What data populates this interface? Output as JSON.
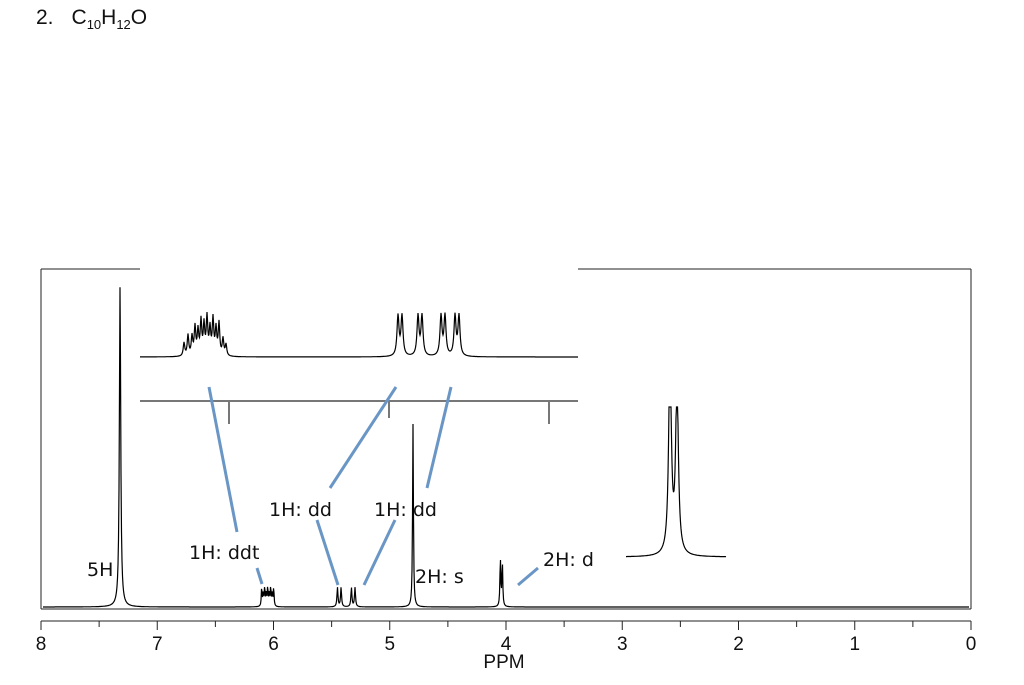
{
  "problem": {
    "number": "2.",
    "formula_parts": [
      {
        "text": "C",
        "sub": false
      },
      {
        "text": "10",
        "sub": true
      },
      {
        "text": "H",
        "sub": false
      },
      {
        "text": "12",
        "sub": true
      },
      {
        "text": "O",
        "sub": false
      }
    ]
  },
  "chart_data": {
    "type": "line",
    "subtype": "1H NMR spectrum",
    "title": "",
    "xlabel": "PPM",
    "ylabel": "",
    "xlim": [
      8,
      0
    ],
    "x_reversed": true,
    "x_ticks": [
      "8",
      "7",
      "6",
      "5",
      "4",
      "3",
      "2",
      "1",
      "0"
    ],
    "grid": false,
    "peaks": [
      {
        "ppm": 7.32,
        "integration": "5H",
        "multiplicity": "",
        "label": "5H",
        "height": 1.0
      },
      {
        "ppm": 6.05,
        "integration": "1H",
        "multiplicity": "ddt",
        "label": "1H: ddt",
        "height": 0.06
      },
      {
        "ppm": 5.43,
        "integration": "1H",
        "multiplicity": "dd",
        "label": "1H: dd",
        "height": 0.06
      },
      {
        "ppm": 5.31,
        "integration": "1H",
        "multiplicity": "dd",
        "label": "1H: dd",
        "height": 0.06
      },
      {
        "ppm": 4.8,
        "integration": "2H",
        "multiplicity": "s",
        "label": "2H: s",
        "height": 0.57
      },
      {
        "ppm": 4.04,
        "integration": "2H",
        "multiplicity": "d",
        "label": "2H: d",
        "height": 0.17
      }
    ],
    "line_color": "#000000",
    "connector_color": "#6a96c6"
  }
}
